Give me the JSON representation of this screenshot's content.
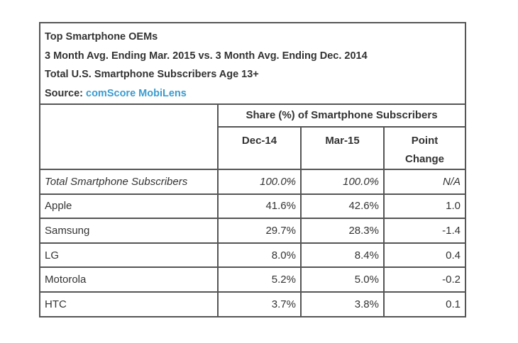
{
  "header": {
    "title": "Top Smartphone OEMs",
    "subtitle": "3 Month Avg. Ending Mar. 2015 vs. 3 Month Avg. Ending Dec. 2014",
    "population": "Total U.S. Smartphone Subscribers Age 13+",
    "source_label": "Source: ",
    "source_name": "comScore MobiLens"
  },
  "colors": {
    "link": "#3a9bd0",
    "border": "#555555",
    "text": "#333333"
  },
  "table": {
    "group_header": "Share (%) of Smartphone Subscribers",
    "columns": [
      "Dec-14",
      "Mar-15",
      "Point",
      "Change"
    ],
    "rows": [
      {
        "label": "Total Smartphone Subscribers",
        "dec14": "100.0%",
        "mar15": "100.0%",
        "change": "N/A"
      },
      {
        "label": "Apple",
        "dec14": "41.6%",
        "mar15": "42.6%",
        "change": "1.0"
      },
      {
        "label": "Samsung",
        "dec14": "29.7%",
        "mar15": "28.3%",
        "change": "-1.4"
      },
      {
        "label": "LG",
        "dec14": "8.0%",
        "mar15": "8.4%",
        "change": "0.4"
      },
      {
        "label": "Motorola",
        "dec14": "5.2%",
        "mar15": "5.0%",
        "change": "-0.2"
      },
      {
        "label": "HTC",
        "dec14": "3.7%",
        "mar15": "3.8%",
        "change": "0.1"
      }
    ]
  }
}
